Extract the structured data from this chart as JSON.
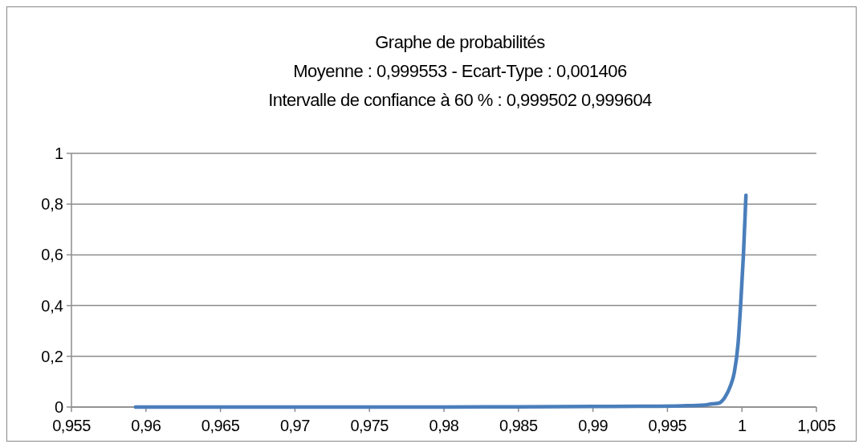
{
  "chart_data": {
    "type": "line",
    "title": "Graphe de probabilités",
    "subtitle": "Moyenne : 0,999553  -  Ecart-Type : 0,001406\nIntervalle de confiance à 60 % : 0,999502    0,999604",
    "series": [
      {
        "color": "#4a7ebb",
        "x": [
          0.9593,
          0.965,
          0.97,
          0.975,
          0.98,
          0.985,
          0.99,
          0.993,
          0.996,
          0.9975,
          0.998,
          0.99842,
          0.99886,
          0.99921,
          0.99948,
          0.99974,
          0.99992,
          1.0001,
          1.00027
        ],
        "values": [
          0,
          0,
          0,
          0,
          0,
          0.001,
          0.002,
          0.003,
          0.005,
          0.008,
          0.013,
          0.015,
          0.039,
          0.081,
          0.134,
          0.25,
          0.41,
          0.6,
          0.835
        ]
      }
    ],
    "xlim": [
      0.955,
      1.005
    ],
    "xticks": [
      {
        "value": 0.955,
        "label": "0,955"
      },
      {
        "value": 0.96,
        "label": "0,96"
      },
      {
        "value": 0.965,
        "label": "0,965"
      },
      {
        "value": 0.97,
        "label": "0,97"
      },
      {
        "value": 0.975,
        "label": "0,975"
      },
      {
        "value": 0.98,
        "label": "0,98"
      },
      {
        "value": 0.985,
        "label": "0,985"
      },
      {
        "value": 0.99,
        "label": "0,99"
      },
      {
        "value": 0.995,
        "label": "0,995"
      },
      {
        "value": 1,
        "label": "1"
      },
      {
        "value": 1.005,
        "label": "1,005"
      }
    ],
    "ylim": [
      0,
      1
    ],
    "yticks": [
      0,
      {
        "value": 0.2,
        "label": "0,2"
      },
      {
        "value": 0.4,
        "label": "0,4"
      },
      {
        "value": 0.6,
        "label": "0,6"
      },
      {
        "value": 0.8,
        "label": "0,8"
      },
      1
    ],
    "grid": "y",
    "marker": "none",
    "line_style": "solid"
  }
}
